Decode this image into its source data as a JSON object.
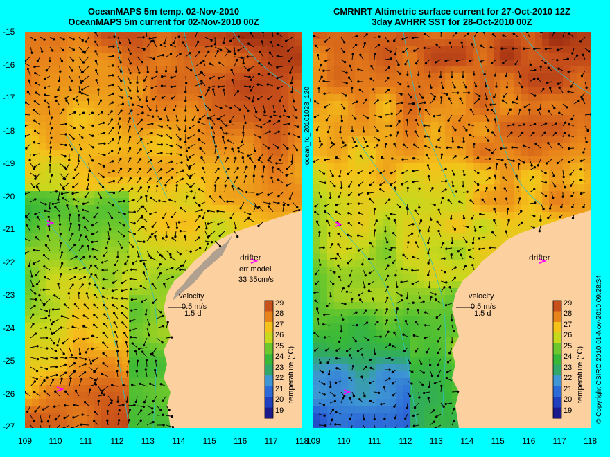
{
  "left_panel": {
    "title_line1": "OceanMAPS 5m temp. 02-Nov-2010",
    "title_line2": "OceanMAPS 5m current for 02-Nov-2010 00Z",
    "drifter_label": "drifter",
    "err_model_label": "err model",
    "err_model_values": "33  35cm/s",
    "velocity_label": "velocity",
    "velocity_scale": "0.5 m/s",
    "velocity_time": "1.5 d"
  },
  "right_panel": {
    "title_line1": "CMRNRT Altimetric surface current for 27-Oct-2010 12Z",
    "title_line2": "3day AVHRR SST for 28-Oct-2010 00Z",
    "drifter_label": "drifter",
    "velocity_label": "velocity",
    "velocity_scale": "0.5 m/s",
    "velocity_time": "1.5 d"
  },
  "side_labels": {
    "middle": "ocean_fc_20101028_120",
    "copyright": "© Copyright CSIRO 2010   01-Nov-2010 09:28:34"
  },
  "colorbar": {
    "title": "temperature (°C)",
    "ticks": [
      "29",
      "28",
      "27",
      "26",
      "25",
      "24",
      "23",
      "22",
      "21",
      "20",
      "19"
    ]
  },
  "axes": {
    "lat_ticks": [
      "-15",
      "-16",
      "-17",
      "-18",
      "-19",
      "-20",
      "-21",
      "-22",
      "-23",
      "-24",
      "-25",
      "-26",
      "-27"
    ],
    "lon_ticks": [
      "109",
      "110",
      "111",
      "112",
      "113",
      "114",
      "115",
      "116",
      "117",
      "118"
    ]
  },
  "colors": {
    "background": "#00ffff",
    "land": "#fdd0a0",
    "land_gray": "#b0a090",
    "coast": "#30c0c0",
    "drifter": "#ff00ff"
  }
}
